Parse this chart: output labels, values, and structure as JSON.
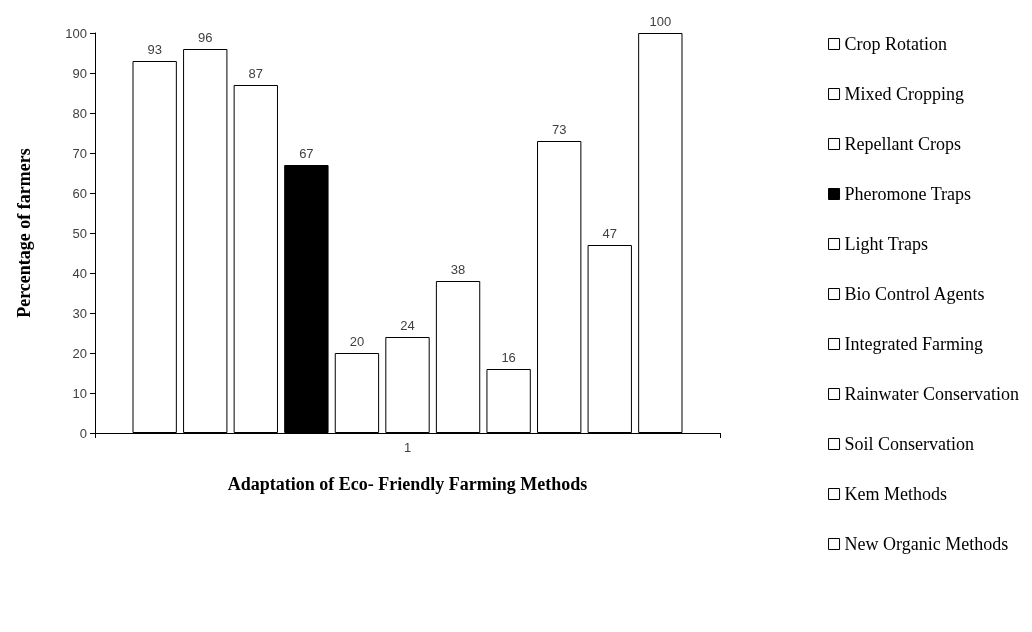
{
  "chart_data": {
    "type": "bar",
    "xlabel": "Adaptation of Eco- Friendly Farming Methods",
    "ylabel": "Percentage of farmers",
    "categories": [
      "1"
    ],
    "series": [
      {
        "name": "Crop Rotation",
        "color": "#ffffff",
        "values": [
          93
        ]
      },
      {
        "name": "Mixed Cropping",
        "color": "#ffffff",
        "values": [
          96
        ]
      },
      {
        "name": "Repellant Crops",
        "color": "#ffffff",
        "values": [
          87
        ]
      },
      {
        "name": "Pheromone Traps",
        "color": "#000000",
        "values": [
          67
        ]
      },
      {
        "name": "Light Traps",
        "color": "#ffffff",
        "values": [
          20
        ]
      },
      {
        "name": "Bio Control Agents",
        "color": "#ffffff",
        "values": [
          24
        ]
      },
      {
        "name": "Integrated Farming",
        "color": "#ffffff",
        "values": [
          38
        ]
      },
      {
        "name": "Rainwater Conservation",
        "color": "#ffffff",
        "values": [
          16
        ]
      },
      {
        "name": "Soil Conservation",
        "color": "#ffffff",
        "values": [
          73
        ]
      },
      {
        "name": "Kem Methods",
        "color": "#ffffff",
        "values": [
          47
        ]
      },
      {
        "name": "New Organic Methods",
        "color": "#ffffff",
        "values": [
          100
        ]
      }
    ],
    "ylim": [
      0,
      100
    ],
    "yticks": [
      0,
      10,
      20,
      30,
      40,
      50,
      60,
      70,
      80,
      90,
      100
    ],
    "grid": false,
    "legend": "right",
    "data_labels": true
  }
}
